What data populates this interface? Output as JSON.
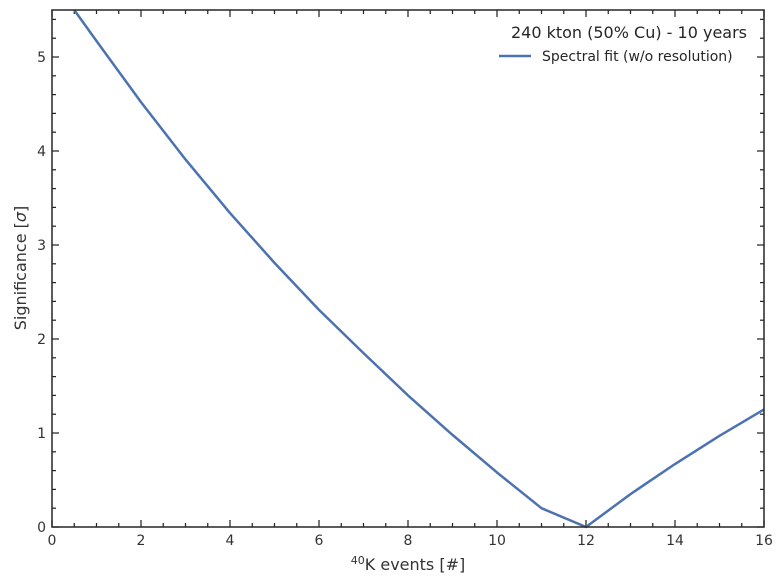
{
  "chart_data": {
    "type": "line",
    "xlabel_sup": "40",
    "xlabel_main": "K events [#]",
    "ylabel_main": "Significance [",
    "ylabel_sym": "σ",
    "ylabel_end": "]",
    "xlim": [
      0,
      16
    ],
    "ylim": [
      0,
      5.5
    ],
    "x_ticks": [
      "0",
      "2",
      "4",
      "6",
      "8",
      "10",
      "12",
      "14",
      "16"
    ],
    "y_ticks": [
      "0",
      "1",
      "2",
      "3",
      "4",
      "5"
    ],
    "grid": false,
    "legend": {
      "title": "240 kton (50% Cu) - 10 years",
      "placement": "top-right",
      "entries": [
        "Spectral fit (w/o resolution)"
      ]
    },
    "series": [
      {
        "name": "Spectral fit (w/o resolution)",
        "color": "#4c72b0",
        "x": [
          0.5,
          1,
          2,
          3,
          4,
          5,
          6,
          7,
          8,
          9,
          10,
          11,
          12,
          13,
          14,
          15,
          16
        ],
        "y": [
          5.5,
          5.17,
          4.52,
          3.91,
          3.34,
          2.81,
          2.31,
          1.85,
          1.4,
          0.98,
          0.58,
          0.2,
          0.0,
          0.35,
          0.67,
          0.97,
          1.25
        ]
      }
    ]
  }
}
